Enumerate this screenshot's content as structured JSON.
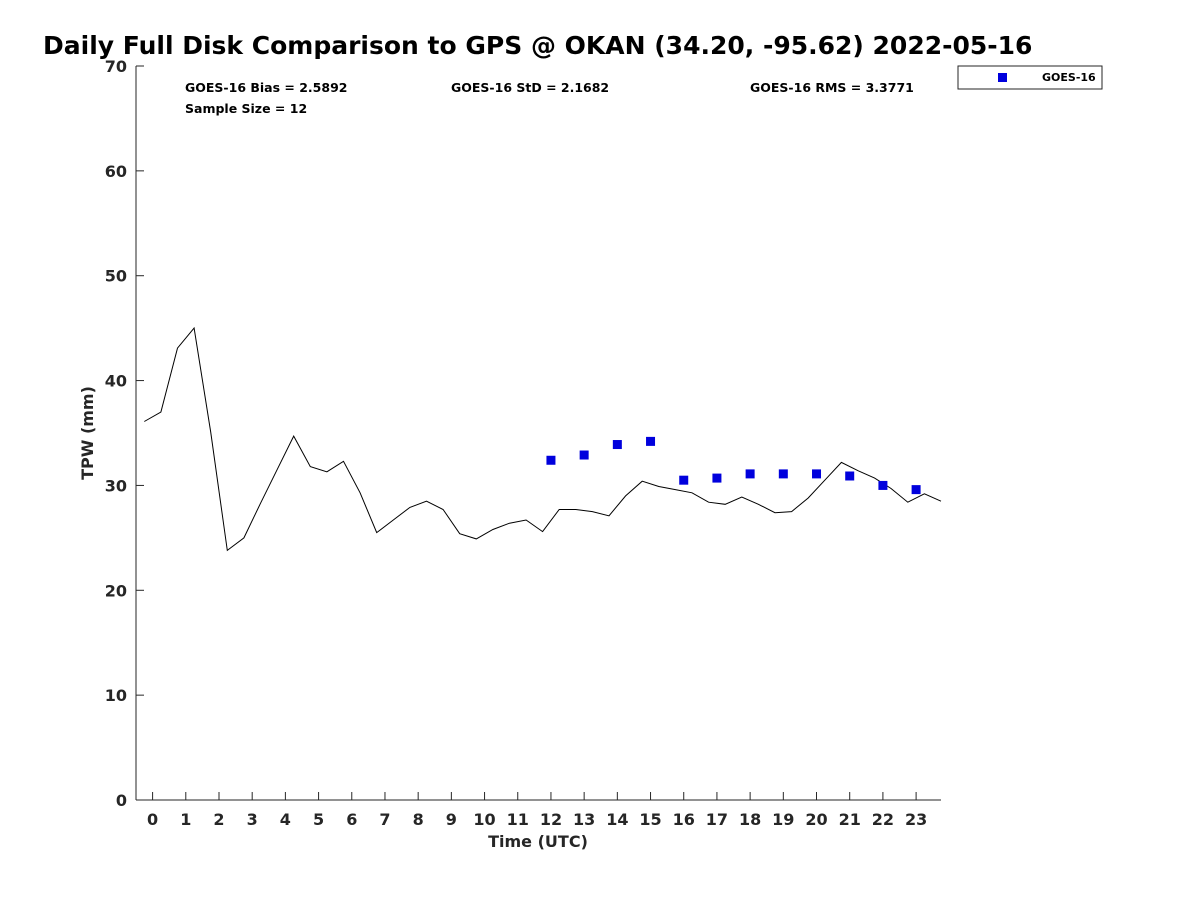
{
  "chart_data": {
    "type": "line",
    "title": "Daily Full Disk Comparison to GPS @ OKAN (34.20, -95.62) 2022-05-16",
    "xlabel": "Time (UTC)",
    "ylabel": "TPW (mm)",
    "xlim": [
      -0.5,
      23.75
    ],
    "ylim": [
      0,
      70
    ],
    "x_ticks": [
      0,
      1,
      2,
      3,
      4,
      5,
      6,
      7,
      8,
      9,
      10,
      11,
      12,
      13,
      14,
      15,
      16,
      17,
      18,
      19,
      20,
      21,
      22,
      23
    ],
    "y_ticks": [
      0,
      10,
      20,
      30,
      40,
      50,
      60,
      70
    ],
    "grid": false,
    "legend": {
      "position": "outside top-right",
      "entries": [
        "GOES-16"
      ]
    },
    "stats": {
      "bias": "GOES-16 Bias = 2.5892",
      "std": "GOES-16 StD = 2.1682",
      "rms": "GOES-16 RMS = 3.3771",
      "sample": "Sample Size = 12"
    },
    "series": [
      {
        "style": "line",
        "color": "#000000",
        "x": [
          -0.25,
          0.25,
          0.75,
          1.25,
          1.75,
          2.25,
          2.75,
          3.25,
          3.75,
          4.25,
          4.75,
          5.25,
          5.75,
          6.25,
          6.75,
          7.25,
          7.75,
          8.25,
          8.75,
          9.25,
          9.75,
          10.25,
          10.75,
          11.25,
          11.75,
          12.25,
          12.75,
          13.25,
          13.75,
          14.25,
          14.75,
          15.25,
          15.75,
          16.25,
          16.75,
          17.25,
          17.75,
          18.25,
          18.75,
          19.25,
          19.75,
          20.25,
          20.75,
          21.25,
          21.75,
          22.25,
          22.75,
          23.25,
          23.75
        ],
        "values": [
          36.1,
          37.0,
          43.1,
          45.0,
          35.1,
          23.8,
          25.0,
          28.3,
          31.5,
          34.7,
          31.8,
          31.3,
          32.3,
          29.3,
          25.5,
          26.7,
          27.9,
          28.5,
          27.7,
          25.4,
          24.9,
          25.8,
          26.4,
          26.7,
          25.6,
          27.7,
          27.7,
          27.5,
          27.1,
          29.0,
          30.4,
          29.9,
          29.6,
          29.3,
          28.4,
          28.2,
          28.9,
          28.2,
          27.4,
          27.5,
          28.8,
          30.5,
          32.2,
          31.4,
          30.7,
          29.7,
          28.4,
          29.2,
          28.5
        ]
      },
      {
        "name": "GOES-16",
        "style": "marker",
        "marker": "square",
        "color": "#0000dd",
        "x": [
          12,
          13,
          14,
          15,
          16,
          17,
          18,
          19,
          20,
          21,
          22,
          23
        ],
        "values": [
          32.4,
          32.9,
          33.9,
          34.2,
          30.5,
          30.7,
          31.1,
          31.1,
          31.1,
          30.9,
          30.0,
          29.6
        ]
      }
    ]
  }
}
